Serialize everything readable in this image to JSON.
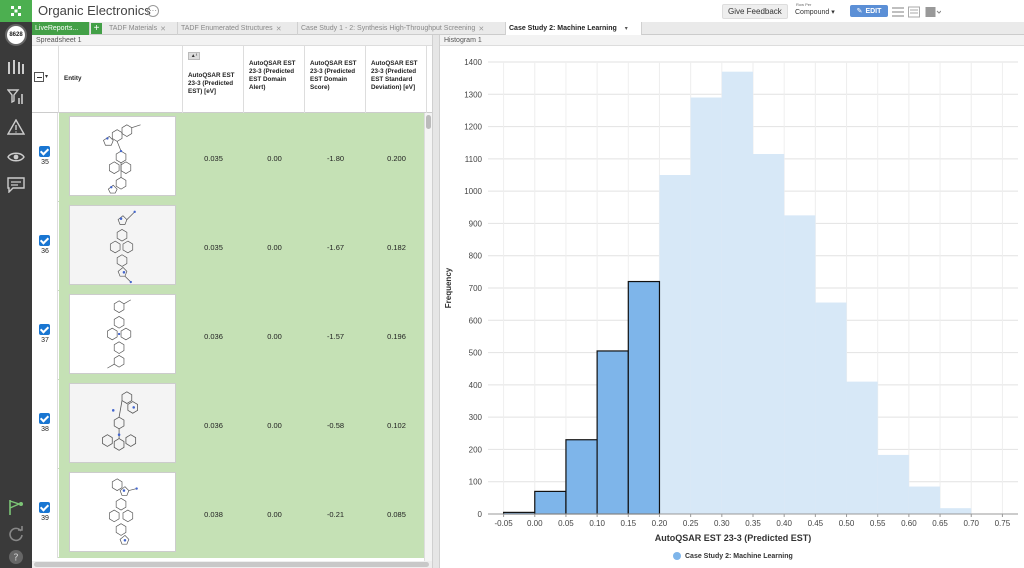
{
  "app": {
    "title": "Organic Electronics",
    "more_icon": "ellipsis-icon",
    "badge": "8628"
  },
  "header": {
    "feedback_label": "Give Feedback",
    "row_per_label": "Row Per",
    "row_per_value": "Compound",
    "edit_label": "EDIT"
  },
  "tabs": {
    "livereports": "LiveReports...",
    "items": [
      {
        "label": "TADF Materials"
      },
      {
        "label": "TADF Enumerated Structures"
      },
      {
        "label": "Case Study 1 - 2: Synthesis High-Throughput Screening"
      },
      {
        "label": "Case Study 2: Machine Learning"
      }
    ]
  },
  "panels": {
    "spreadsheet_title": "Spreadsheet 1",
    "histogram_title": "Histogram 1"
  },
  "table": {
    "columns": [
      "Entity",
      "AutoQSAR EST 23-3 (Predicted EST) [eV]",
      "AutoQSAR EST 23-3 (Predicted EST Domain Alert)",
      "AutoQSAR EST 23-3 (Predicted EST Domain Score)",
      "AutoQSAR EST 23-3 (Predicted EST Standard Deviation) [eV]"
    ],
    "rows": [
      {
        "id": "35",
        "est": "0.035",
        "alert": "0.00",
        "score": "-1.80",
        "sd": "0.200"
      },
      {
        "id": "36",
        "est": "0.035",
        "alert": "0.00",
        "score": "-1.67",
        "sd": "0.182"
      },
      {
        "id": "37",
        "est": "0.036",
        "alert": "0.00",
        "score": "-1.57",
        "sd": "0.196"
      },
      {
        "id": "38",
        "est": "0.036",
        "alert": "0.00",
        "score": "-0.58",
        "sd": "0.102"
      },
      {
        "id": "39",
        "est": "0.038",
        "alert": "0.00",
        "score": "-0.21",
        "sd": "0.085"
      }
    ]
  },
  "colors": {
    "accent": "#43a047",
    "selected_bar": "#7eb5ea",
    "background_bar": "#d7e8f7",
    "row_green": "#c5e1b5"
  },
  "chart_data": {
    "type": "bar",
    "xlabel": "AutoQSAR EST 23-3 (Predicted EST)",
    "ylabel": "Frequency",
    "xlim": [
      -0.075,
      0.775
    ],
    "ylim": [
      0,
      1400
    ],
    "xticks": [
      "-0.05",
      "0.00",
      "0.05",
      "0.10",
      "0.15",
      "0.20",
      "0.25",
      "0.30",
      "0.35",
      "0.40",
      "0.45",
      "0.50",
      "0.55",
      "0.60",
      "0.65",
      "0.70",
      "0.75"
    ],
    "yticks": [
      0,
      100,
      200,
      300,
      400,
      500,
      600,
      700,
      800,
      900,
      1000,
      1100,
      1200,
      1300,
      1400
    ],
    "bin_width": 0.05,
    "bins": [
      -0.05,
      0.0,
      0.05,
      0.1,
      0.15,
      0.2,
      0.25,
      0.3,
      0.35,
      0.4,
      0.45,
      0.5,
      0.55,
      0.6,
      0.65
    ],
    "selected": [
      5,
      70,
      230,
      505,
      720,
      0,
      0,
      0,
      0,
      0,
      0,
      0,
      0,
      0,
      0
    ],
    "all": [
      5,
      70,
      230,
      505,
      720,
      1050,
      1290,
      1370,
      1115,
      925,
      655,
      410,
      183,
      85,
      18
    ],
    "grid": true,
    "legend": {
      "position": "bottom",
      "label": "Case Study 2: Machine Learning"
    }
  }
}
